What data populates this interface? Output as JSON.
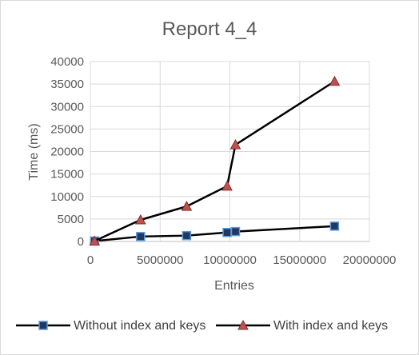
{
  "chart_data": {
    "type": "scatter",
    "title": "Report 4_4",
    "xlabel": "Entries",
    "ylabel": "Time (ms)",
    "xlim": [
      0,
      20000000
    ],
    "ylim": [
      0,
      40000
    ],
    "x_ticks": [
      "0",
      "5000000",
      "10000000",
      "15000000",
      "20000000"
    ],
    "y_ticks": [
      "0",
      "5000",
      "10000",
      "15000",
      "20000",
      "25000",
      "30000",
      "35000",
      "40000"
    ],
    "grid": true,
    "legend_position": "bottom",
    "series": [
      {
        "name": "Without index and keys",
        "color": "#000000",
        "marker_fill": "#1f3864",
        "marker_stroke": "#5b9bd5",
        "marker": "square",
        "points": [
          {
            "x": 300000,
            "y": 100
          },
          {
            "x": 3600000,
            "y": 1100
          },
          {
            "x": 6900000,
            "y": 1300
          },
          {
            "x": 9800000,
            "y": 2000
          },
          {
            "x": 10400000,
            "y": 2200
          },
          {
            "x": 17500000,
            "y": 3400
          }
        ]
      },
      {
        "name": "With index and keys",
        "color": "#000000",
        "marker_fill": "#c0504d",
        "marker_stroke": "#7f2d2d",
        "marker": "triangle",
        "points": [
          {
            "x": 300000,
            "y": 100
          },
          {
            "x": 3600000,
            "y": 4800
          },
          {
            "x": 6900000,
            "y": 7800
          },
          {
            "x": 9800000,
            "y": 12300
          },
          {
            "x": 10400000,
            "y": 21500
          },
          {
            "x": 17500000,
            "y": 35600
          }
        ]
      }
    ]
  }
}
